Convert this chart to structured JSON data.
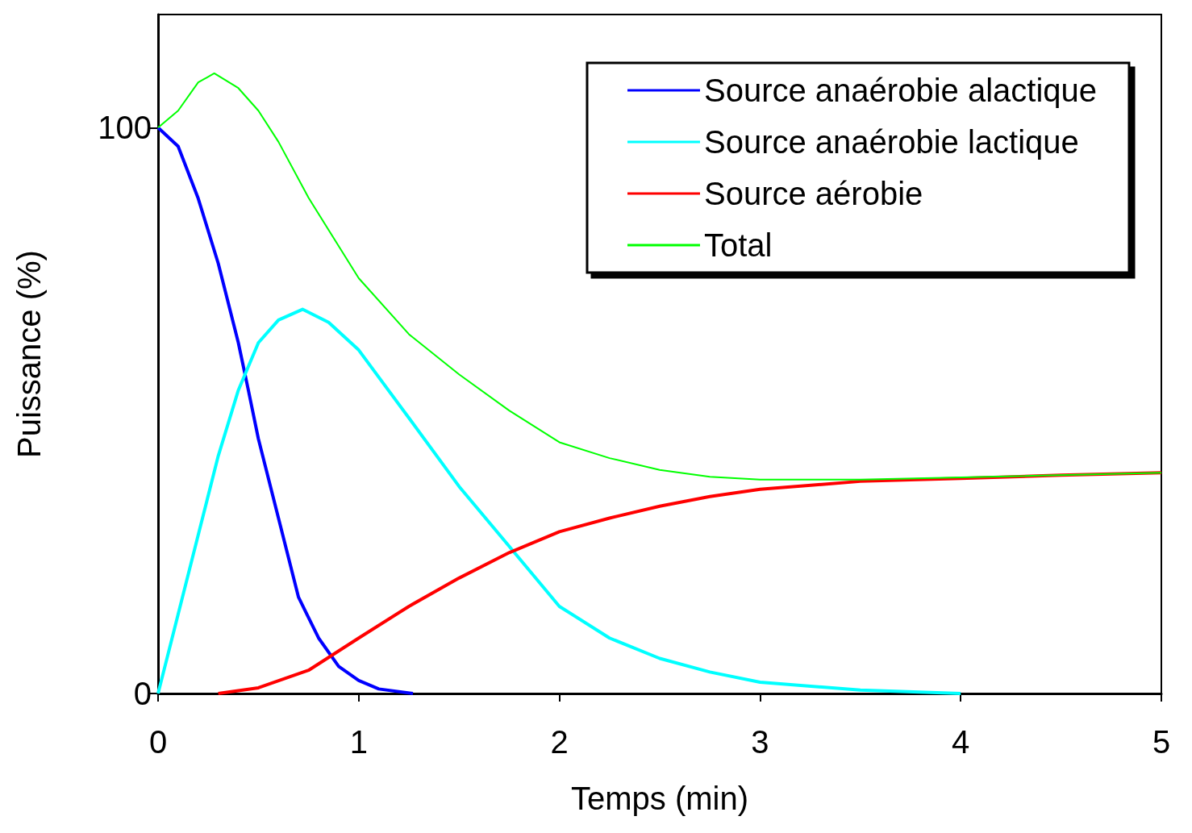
{
  "chart_data": {
    "type": "line",
    "xlabel": "Temps (min)",
    "ylabel": "Puissance (%)",
    "xlim": [
      0,
      5
    ],
    "xticks": [
      0,
      1,
      2,
      3,
      4,
      5
    ],
    "ylim": [
      0,
      120
    ],
    "yticks": [
      0,
      100
    ],
    "grid": false,
    "legend": "top right",
    "marker": "none",
    "line_style": "solid",
    "series": [
      {
        "name": "Source anaérobie alactique",
        "color": "#0000ff",
        "x": [
          0,
          0.1,
          0.2,
          0.3,
          0.4,
          0.45,
          0.5,
          0.6,
          0.7,
          0.8,
          0.9,
          1.0,
          1.1,
          1.27
        ],
        "values": [
          100,
          96.7,
          87.5,
          76,
          62,
          53.6,
          45,
          31,
          17,
          9.8,
          4.8,
          2.3,
          0.8,
          0
        ]
      },
      {
        "name": "Source anaérobie lactique",
        "color": "#00ffff",
        "x": [
          0,
          0.1,
          0.2,
          0.3,
          0.4,
          0.5,
          0.6,
          0.72,
          0.85,
          1.0,
          1.25,
          1.5,
          1.75,
          2.0,
          2.25,
          2.5,
          2.75,
          3.0,
          3.5,
          4.0
        ],
        "values": [
          0,
          14,
          28,
          42,
          53.6,
          62,
          66,
          67.9,
          65.6,
          60.7,
          48.7,
          36.6,
          26,
          15.4,
          9.8,
          6.2,
          3.8,
          2,
          0.6,
          0
        ]
      },
      {
        "name": "Source aérobie",
        "color": "#ff0000",
        "x": [
          0.3,
          0.5,
          0.75,
          1.0,
          1.25,
          1.5,
          1.75,
          2.0,
          2.25,
          2.5,
          2.75,
          3.0,
          3.5,
          4.0,
          4.5,
          5.0
        ],
        "values": [
          0,
          1,
          4.1,
          9.8,
          15.4,
          20.4,
          24.9,
          28.6,
          31,
          33.1,
          34.8,
          36.1,
          37.5,
          38,
          38.6,
          39
        ]
      },
      {
        "name": "Total",
        "color": "#00ff00",
        "x": [
          0,
          0.1,
          0.2,
          0.28,
          0.4,
          0.5,
          0.6,
          0.75,
          1.0,
          1.25,
          1.5,
          1.75,
          2.0,
          2.25,
          2.5,
          2.75,
          3.0,
          3.5,
          4.0,
          5.0
        ],
        "values": [
          100,
          103,
          108,
          109.6,
          107,
          103,
          97.5,
          87.6,
          73.4,
          63.5,
          56.4,
          50,
          44.4,
          41.6,
          39.5,
          38.3,
          37.8,
          37.8,
          38.2,
          39
        ]
      }
    ]
  }
}
